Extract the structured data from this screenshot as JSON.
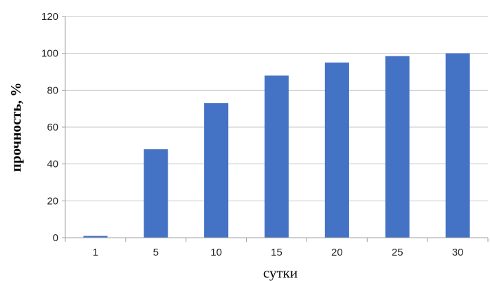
{
  "chart_data": {
    "type": "bar",
    "categories": [
      "1",
      "5",
      "10",
      "15",
      "20",
      "25",
      "30"
    ],
    "values": [
      1,
      48,
      73,
      88,
      95,
      98.5,
      100
    ],
    "title": "",
    "xlabel": "сутки",
    "ylabel": "прочность, %",
    "ylim": [
      0,
      120
    ],
    "yticks": [
      "0",
      "20",
      "40",
      "60",
      "80",
      "100",
      "120"
    ],
    "grid": true,
    "legend": "none",
    "colors": {
      "bar": "#4472C4",
      "grid": "#c6c6c6",
      "axis": "#a0a0a0"
    }
  }
}
